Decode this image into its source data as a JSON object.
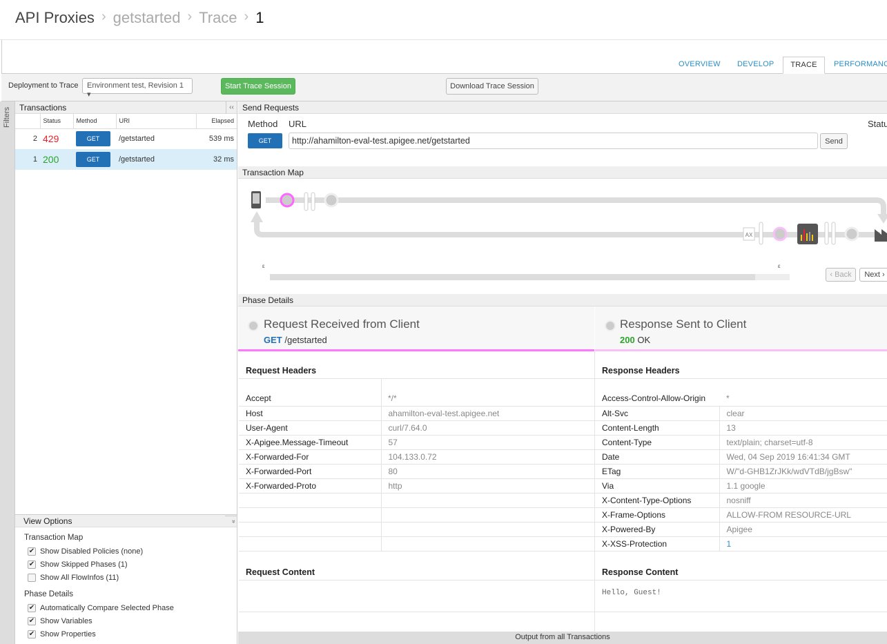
{
  "breadcrumb": {
    "root": "API Proxies",
    "proxy": "getstarted",
    "section": "Trace",
    "current": "1"
  },
  "tabs": [
    {
      "label": "OVERVIEW"
    },
    {
      "label": "DEVELOP"
    },
    {
      "label": "TRACE",
      "active": true
    },
    {
      "label": "PERFORMANCE"
    }
  ],
  "toolbar": {
    "deployment_label": "Deployment to Trace",
    "deployment_value": "Environment test, Revision 1",
    "start_label": "Start Trace Session",
    "download_label": "Download Trace Session"
  },
  "filters_label": "Filters",
  "transactions": {
    "title": "Transactions",
    "collapse": "‹‹",
    "columns": [
      "",
      "Status",
      "Method",
      "URI",
      "Elapsed"
    ],
    "rows": [
      {
        "num": "2",
        "status": "429",
        "method": "GET",
        "uri": "/getstarted",
        "elapsed": "539 ms"
      },
      {
        "num": "1",
        "status": "200",
        "method": "GET",
        "uri": "/getstarted",
        "elapsed": "32 ms",
        "selected": true
      }
    ]
  },
  "view_options": {
    "title": "View Options",
    "expand": "»",
    "groups": [
      {
        "label": "Transaction Map",
        "items": [
          {
            "label": "Show Disabled Policies (none)",
            "checked": true
          },
          {
            "label": "Show Skipped Phases (1)",
            "checked": true
          },
          {
            "label": "Show All FlowInfos (11)",
            "checked": false
          }
        ]
      },
      {
        "label": "Phase Details",
        "items": [
          {
            "label": "Automatically Compare Selected Phase",
            "checked": true
          },
          {
            "label": "Show Variables",
            "checked": true
          },
          {
            "label": "Show Properties",
            "checked": true
          }
        ]
      }
    ]
  },
  "send": {
    "title": "Send Requests",
    "method_label": "Method",
    "url_label": "URL",
    "status_label": "Status",
    "method": "GET",
    "url": "http://ahamilton-eval-test.apigee.net/getstarted",
    "send_label": "Send"
  },
  "map": {
    "title": "Transaction Map",
    "back": "‹ Back",
    "next": "Next ›",
    "ax": "AX",
    "start_marker": "ε",
    "end_marker": "ε"
  },
  "phase": {
    "title": "Phase Details",
    "left_title": "Request Received from Client",
    "left_method": "GET",
    "left_path": "/getstarted",
    "right_title": "Response Sent to Client",
    "right_code": "200",
    "right_text": "OK"
  },
  "request_headers": {
    "title": "Request Headers",
    "rows": [
      [
        "Accept",
        "*/*"
      ],
      [
        "Host",
        "ahamilton-eval-test.apigee.net"
      ],
      [
        "User-Agent",
        "curl/7.64.0"
      ],
      [
        "X-Apigee.Message-Timeout",
        "57"
      ],
      [
        "X-Forwarded-For",
        "104.133.0.72"
      ],
      [
        "X-Forwarded-Port",
        "80"
      ],
      [
        "X-Forwarded-Proto",
        "http"
      ]
    ]
  },
  "response_headers": {
    "title": "Response Headers",
    "rows": [
      [
        "Access-Control-Allow-Origin",
        "*"
      ],
      [
        "Alt-Svc",
        "clear"
      ],
      [
        "Content-Length",
        "13"
      ],
      [
        "Content-Type",
        "text/plain; charset=utf-8"
      ],
      [
        "Date",
        "Wed, 04 Sep 2019 16:41:34 GMT"
      ],
      [
        "ETag",
        "W/\"d-GHB1ZrJKk/wdVTdB/jgBsw\""
      ],
      [
        "Via",
        "1.1 google"
      ],
      [
        "X-Content-Type-Options",
        "nosniff"
      ],
      [
        "X-Frame-Options",
        "ALLOW-FROM RESOURCE-URL"
      ],
      [
        "X-Powered-By",
        "Apigee"
      ],
      [
        "X-XSS-Protection",
        "1"
      ]
    ]
  },
  "request_content": {
    "title": "Request Content",
    "body": ""
  },
  "response_content": {
    "title": "Response Content",
    "body": "Hello, Guest!"
  },
  "footer": "Output from all Transactions",
  "colors": {
    "accent": "#2a8fc7",
    "get": "#2270b6",
    "start": "#5cb85c",
    "error": "#e8212a",
    "ok": "#2aa52a",
    "phase_line": "#ff77ff"
  }
}
